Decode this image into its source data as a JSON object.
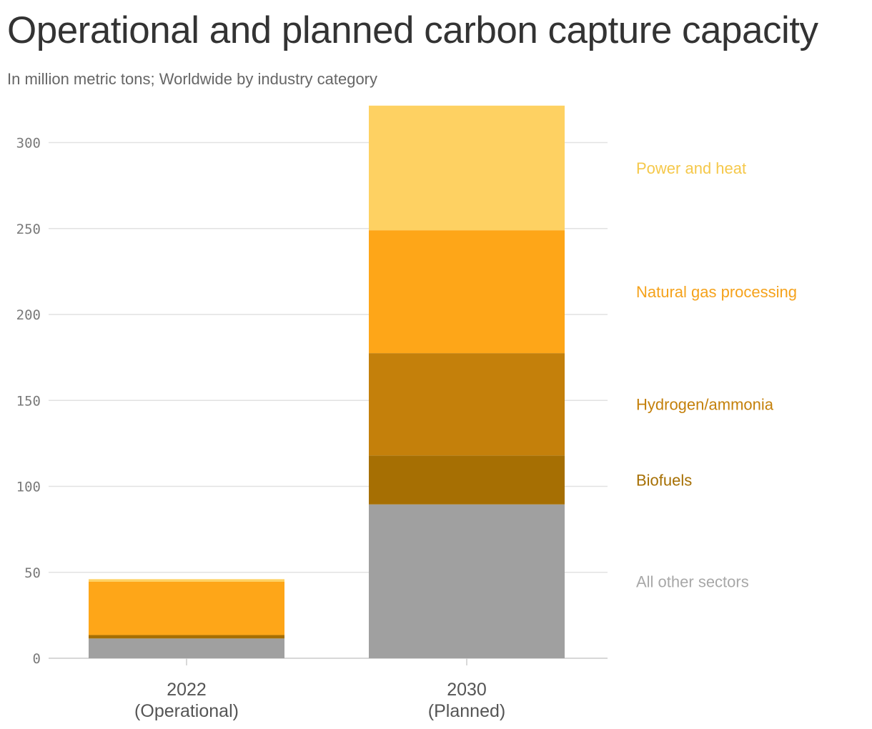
{
  "title": "Operational and planned carbon capture capacity",
  "subtitle": "In million metric tons; Worldwide by industry category",
  "chart_data": {
    "type": "bar",
    "stacked": true,
    "categories": [
      "2022",
      "2030"
    ],
    "category_sublabels": [
      "(Operational)",
      "(Planned)"
    ],
    "series": [
      {
        "name": "All other sectors",
        "values": [
          11.5,
          89.5
        ],
        "color": "#a0a0a0"
      },
      {
        "name": "Biofuels",
        "values": [
          2.0,
          28.5
        ],
        "color": "#a66f03"
      },
      {
        "name": "Hydrogen/ammonia",
        "values": [
          0.0,
          59.5
        ],
        "color": "#c4800b"
      },
      {
        "name": "Natural gas processing",
        "values": [
          31.0,
          71.5
        ],
        "color": "#fea618"
      },
      {
        "name": "Power and heat",
        "values": [
          1.5,
          72.5
        ],
        "color": "#fed162"
      }
    ],
    "legend_placement": "right",
    "ylim": [
      0,
      320
    ],
    "yticks": [
      0,
      50,
      100,
      150,
      200,
      250,
      300
    ],
    "grid": true,
    "xlabel": "",
    "ylabel": ""
  }
}
